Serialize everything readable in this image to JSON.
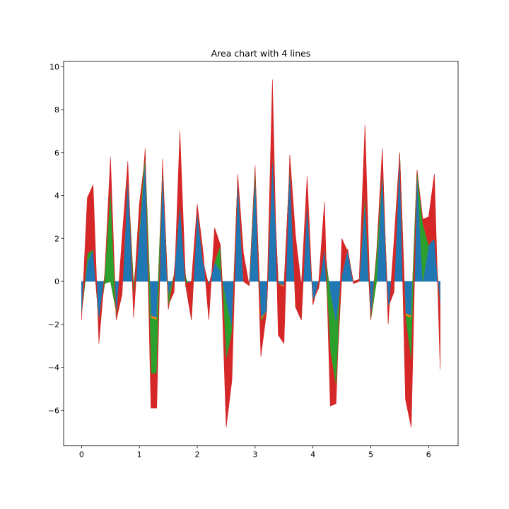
{
  "chart_data": {
    "type": "area",
    "title": "Area chart with 4 lines",
    "xlabel": "",
    "ylabel": "",
    "xlim": [
      -0.31,
      6.51
    ],
    "ylim": [
      -7.66,
      10.26
    ],
    "x_ticks": [
      0,
      1,
      2,
      3,
      4,
      5,
      6
    ],
    "x_tick_labels": [
      "0",
      "1",
      "2",
      "3",
      "4",
      "5",
      "6"
    ],
    "y_ticks": [
      -6,
      -4,
      -2,
      0,
      2,
      4,
      6,
      8,
      10
    ],
    "y_tick_labels": [
      "−6",
      "−4",
      "−2",
      "0",
      "2",
      "4",
      "6",
      "8",
      "10"
    ],
    "grid": false,
    "stacked": true,
    "x": [
      0,
      0.1,
      0.2,
      0.3,
      0.4,
      0.5,
      0.6,
      0.7,
      0.8,
      0.9,
      1.0,
      1.1,
      1.2,
      1.3,
      1.4,
      1.5,
      1.6,
      1.7,
      1.8,
      1.9,
      2.0,
      2.1,
      2.2,
      2.3,
      2.4,
      2.5,
      2.6,
      2.7,
      2.8,
      2.9,
      3.0,
      3.1,
      3.2,
      3.3,
      3.4,
      3.5,
      3.6,
      3.7,
      3.8,
      3.9,
      4.0,
      4.1,
      4.2,
      4.3,
      4.4,
      4.5,
      4.6,
      4.7,
      4.8,
      4.9,
      5.0,
      5.1,
      5.2,
      5.3,
      5.4,
      5.5,
      5.6,
      5.7,
      5.8,
      5.9,
      6.0,
      6.1,
      6.2
    ],
    "series": [
      {
        "color": "#1f77b4",
        "values": [
          -1.5,
          0.9,
          1.5,
          -1.9,
          -0.1,
          0.0,
          -1.4,
          0.3,
          4.9,
          -0.2,
          2.2,
          5.7,
          -1.6,
          -1.7,
          5.2,
          -0.7,
          0.3,
          3.7,
          0.2,
          -0.5,
          3.3,
          0.9,
          -0.2,
          0.9,
          0.5,
          -1.0,
          -2.2,
          4.8,
          0.0,
          -0.2,
          5.0,
          -1.7,
          -1.4,
          6.0,
          -0.1,
          -0.2,
          5.3,
          -0.1,
          -0.3,
          3.7,
          -0.9,
          -0.3,
          1.6,
          -0.6,
          -2.0,
          0.3,
          1.5,
          -0.1,
          0.0,
          3.8,
          -1.7,
          0.0,
          5.2,
          -1.2,
          -0.5,
          6.0,
          -1.5,
          -1.6,
          5.2,
          0.1,
          1.7,
          2.0,
          -1.2
        ]
      },
      {
        "color": "#ff7f0e",
        "values": [
          0.0,
          0.0,
          0.0,
          0.0,
          0.0,
          0.0,
          0.0,
          0.0,
          0.0,
          0.0,
          0.0,
          0.0,
          -0.1,
          -0.1,
          0.0,
          0.0,
          0.0,
          0.0,
          0.0,
          0.0,
          0.0,
          0.0,
          0.0,
          0.0,
          0.0,
          0.0,
          0.0,
          0.0,
          0.0,
          0.0,
          0.0,
          -0.1,
          0.0,
          0.0,
          0.0,
          -0.1,
          0.0,
          0.0,
          0.0,
          0.0,
          0.0,
          0.0,
          0.0,
          0.0,
          0.0,
          0.0,
          0.0,
          0.0,
          0.0,
          0.0,
          -0.1,
          0.0,
          0.0,
          0.0,
          0.0,
          0.0,
          -0.1,
          -0.1,
          0.0,
          -0.1,
          0.0,
          0.0,
          0.0
        ]
      },
      {
        "color": "#2ca02c",
        "values": [
          0.0,
          0.4,
          0.0,
          0.0,
          0.4,
          4.4,
          -0.4,
          -0.9,
          0.0,
          -0.6,
          1.4,
          0.1,
          -2.6,
          -2.5,
          0.2,
          -0.6,
          0.0,
          0.0,
          -0.4,
          -1.3,
          0.0,
          0.0,
          0.0,
          0.0,
          1.2,
          -2.7,
          -0.2,
          0.0,
          0.0,
          0.0,
          0.3,
          -0.1,
          0.0,
          0.0,
          0.0,
          0.0,
          0.1,
          -1.1,
          -1.5,
          0.0,
          0.0,
          0.0,
          0.0,
          -2.7,
          -2.9,
          0.0,
          0.0,
          0.0,
          0.0,
          0.3,
          0.0,
          1.3,
          0.0,
          0.0,
          0.0,
          0.0,
          -0.1,
          -2.1,
          0.0,
          2.7,
          0.0,
          0.0,
          0.0
        ]
      },
      {
        "color": "#d62728",
        "values": [
          -0.3,
          2.6,
          3.0,
          -1.0,
          0.0,
          1.4,
          0.0,
          2.6,
          0.7,
          -0.9,
          -1.1,
          0.4,
          -1.6,
          -1.6,
          0.3,
          0.2,
          -0.8,
          3.3,
          0.1,
          1.8,
          0.3,
          0.5,
          -1.6,
          1.6,
          0.0,
          -3.1,
          -2.2,
          0.2,
          1.3,
          0.0,
          0.1,
          -1.6,
          0.0,
          3.4,
          -2.4,
          -2.6,
          0.5,
          3.3,
          1.6,
          1.2,
          -0.2,
          0.3,
          2.1,
          -2.5,
          -0.8,
          1.7,
          -0.1,
          0.1,
          0.1,
          3.2,
          0.0,
          0.0,
          1.0,
          -0.8,
          2.3,
          0.0,
          -3.8,
          -3.0,
          0.0,
          0.2,
          1.3,
          3.0,
          -2.9
        ]
      }
    ]
  }
}
